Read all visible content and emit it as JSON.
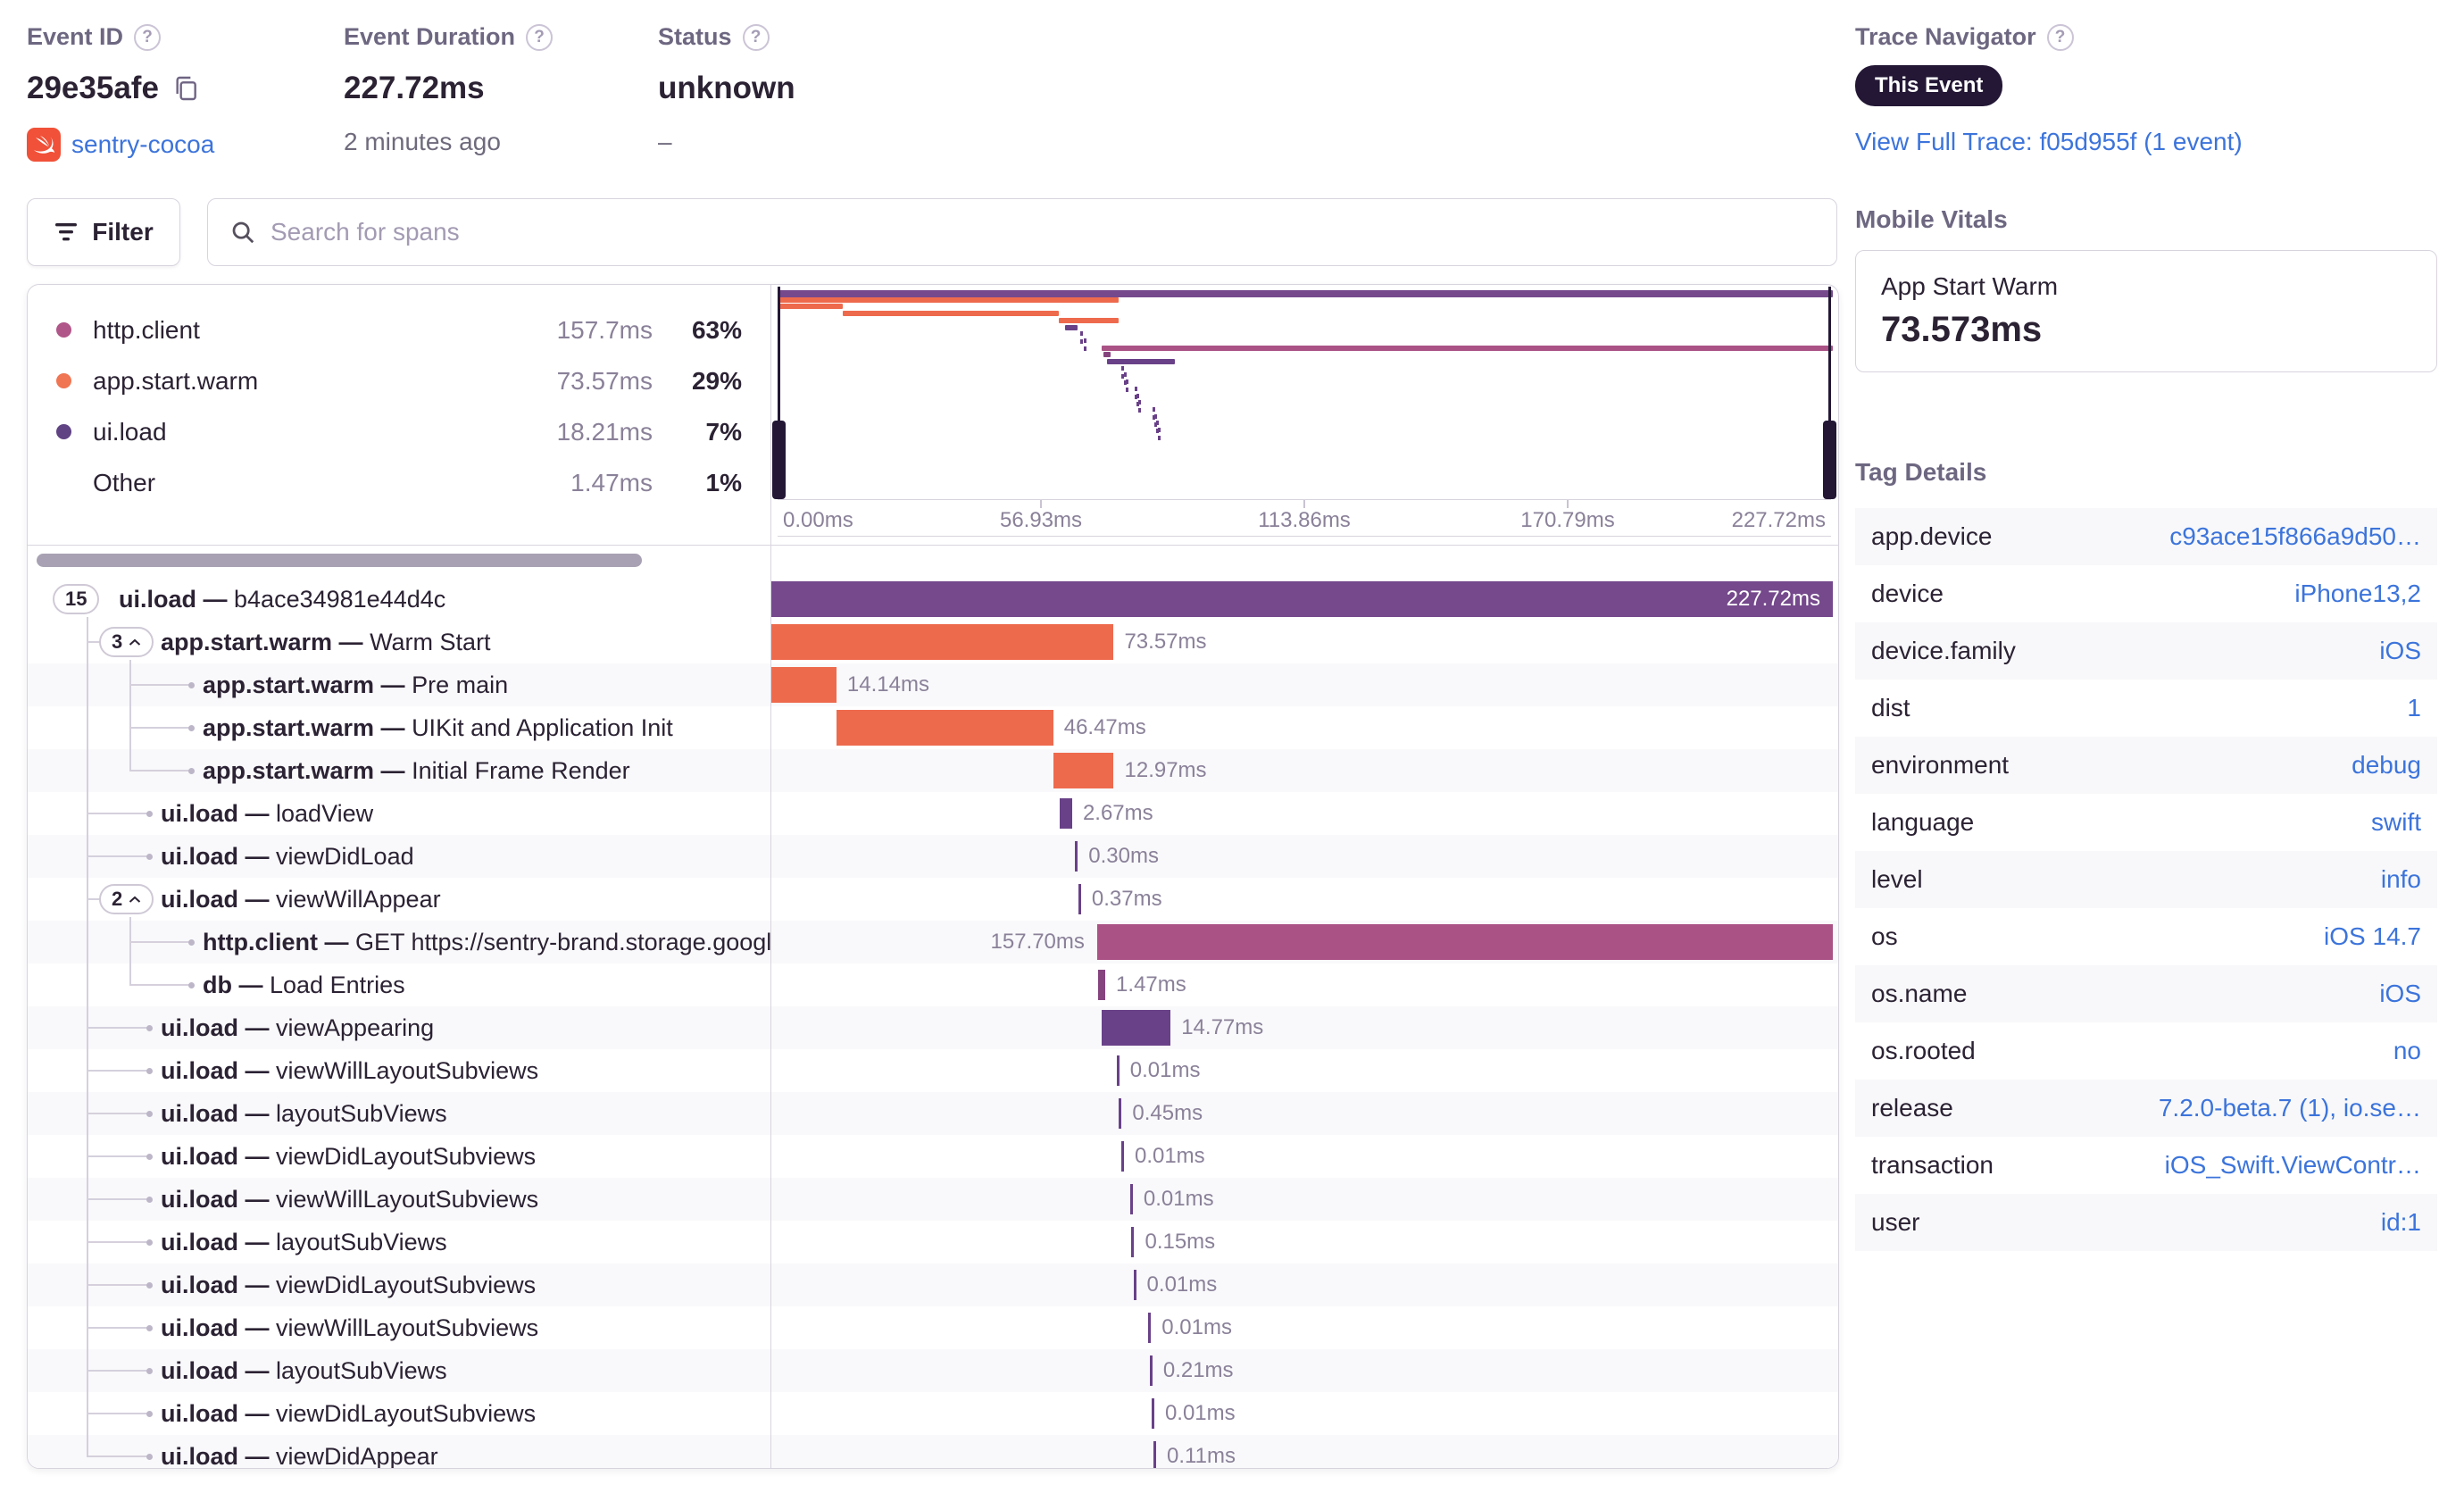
{
  "header": {
    "event_id": {
      "label": "Event ID",
      "value": "29e35afe",
      "project": "sentry-cocoa"
    },
    "duration": {
      "label": "Event Duration",
      "value": "227.72ms",
      "ago": "2 minutes ago"
    },
    "status": {
      "label": "Status",
      "value": "unknown",
      "sub": "–"
    },
    "trace_nav": {
      "label": "Trace Navigator",
      "badge": "This Event",
      "link": "View Full Trace: f05d955f (1 event)"
    }
  },
  "icons": {
    "help_glyph": "?"
  },
  "toolbar": {
    "filter_label": "Filter",
    "search_placeholder": "Search for spans"
  },
  "legend": {
    "items": [
      {
        "op": "http.client",
        "duration": "157.7ms",
        "pct": "63%",
        "color": "#B05688"
      },
      {
        "op": "app.start.warm",
        "duration": "73.57ms",
        "pct": "29%",
        "color": "#EF7553"
      },
      {
        "op": "ui.load",
        "duration": "18.21ms",
        "pct": "7%",
        "color": "#5F4383"
      },
      {
        "op": "Other",
        "duration": "1.47ms",
        "pct": "1%",
        "color": null
      }
    ]
  },
  "minimap": {
    "axis_ticks": [
      "0.00ms",
      "56.93ms",
      "113.86ms",
      "170.79ms",
      "227.72ms"
    ]
  },
  "waterfall": {
    "total_ms": 227.72,
    "separator": "—",
    "rows": [
      {
        "op": "ui.load",
        "desc": "b4ace34981e44d4c",
        "badge": "15",
        "chevron": false,
        "depth": 0,
        "start_ms": 0,
        "duration_ms": 227.72,
        "duration_label": "227.72ms",
        "color": "#75498C",
        "label_pos": "inside"
      },
      {
        "op": "app.start.warm",
        "desc": "Warm Start",
        "badge": "3",
        "chevron": true,
        "depth": 1,
        "start_ms": 0,
        "duration_ms": 73.57,
        "duration_label": "73.57ms",
        "color": "#EE6A4D",
        "label_pos": "right"
      },
      {
        "op": "app.start.warm",
        "desc": "Pre main",
        "depth": 2,
        "start_ms": 0,
        "duration_ms": 14.14,
        "duration_label": "14.14ms",
        "color": "#EE6A4D",
        "label_pos": "right"
      },
      {
        "op": "app.start.warm",
        "desc": "UIKit and Application Init",
        "depth": 2,
        "start_ms": 14.14,
        "duration_ms": 46.47,
        "duration_label": "46.47ms",
        "color": "#EE6A4D",
        "label_pos": "right"
      },
      {
        "op": "app.start.warm",
        "desc": "Initial Frame Render",
        "depth": 2,
        "start_ms": 60.61,
        "duration_ms": 12.97,
        "duration_label": "12.97ms",
        "color": "#EE6A4D",
        "label_pos": "right"
      },
      {
        "op": "ui.load",
        "desc": "loadView",
        "depth": 1,
        "start_ms": 62.0,
        "duration_ms": 2.67,
        "duration_label": "2.67ms",
        "color": "#694188",
        "label_pos": "right"
      },
      {
        "op": "ui.load",
        "desc": "viewDidLoad",
        "depth": 1,
        "start_ms": 65.3,
        "duration_ms": 0.3,
        "duration_label": "0.30ms",
        "color": "#694188",
        "label_pos": "right"
      },
      {
        "op": "ui.load",
        "desc": "viewWillAppear",
        "badge": "2",
        "chevron": true,
        "depth": 1,
        "start_ms": 66.0,
        "duration_ms": 0.37,
        "duration_label": "0.37ms",
        "color": "#694188",
        "label_pos": "right"
      },
      {
        "op": "http.client",
        "desc": "GET https://sentry-brand.storage.googlea",
        "depth": 2,
        "start_ms": 70.02,
        "duration_ms": 157.7,
        "duration_label": "157.70ms",
        "color": "#AA5286",
        "label_pos": "left"
      },
      {
        "op": "db",
        "desc": "Load Entries",
        "depth": 2,
        "start_ms": 70.3,
        "duration_ms": 1.47,
        "duration_label": "1.47ms",
        "color": "#86447F",
        "label_pos": "right"
      },
      {
        "op": "ui.load",
        "desc": "viewAppearing",
        "depth": 1,
        "start_ms": 71.0,
        "duration_ms": 14.77,
        "duration_label": "14.77ms",
        "color": "#694188",
        "label_pos": "right"
      },
      {
        "op": "ui.load",
        "desc": "viewWillLayoutSubviews",
        "depth": 1,
        "start_ms": 74.2,
        "duration_ms": 0.01,
        "duration_label": "0.01ms",
        "color": "#694188",
        "label_pos": "right"
      },
      {
        "op": "ui.load",
        "desc": "layoutSubViews",
        "depth": 1,
        "start_ms": 74.7,
        "duration_ms": 0.45,
        "duration_label": "0.45ms",
        "color": "#694188",
        "label_pos": "right"
      },
      {
        "op": "ui.load",
        "desc": "viewDidLayoutSubviews",
        "depth": 1,
        "start_ms": 75.2,
        "duration_ms": 0.01,
        "duration_label": "0.01ms",
        "color": "#694188",
        "label_pos": "right"
      },
      {
        "op": "ui.load",
        "desc": "viewWillLayoutSubviews",
        "depth": 1,
        "start_ms": 77.1,
        "duration_ms": 0.01,
        "duration_label": "0.01ms",
        "color": "#694188",
        "label_pos": "right"
      },
      {
        "op": "ui.load",
        "desc": "layoutSubViews",
        "depth": 1,
        "start_ms": 77.4,
        "duration_ms": 0.15,
        "duration_label": "0.15ms",
        "color": "#694188",
        "label_pos": "right"
      },
      {
        "op": "ui.load",
        "desc": "viewDidLayoutSubviews",
        "depth": 1,
        "start_ms": 77.8,
        "duration_ms": 0.01,
        "duration_label": "0.01ms",
        "color": "#694188",
        "label_pos": "right"
      },
      {
        "op": "ui.load",
        "desc": "viewWillLayoutSubviews",
        "depth": 1,
        "start_ms": 81.0,
        "duration_ms": 0.01,
        "duration_label": "0.01ms",
        "color": "#694188",
        "label_pos": "right"
      },
      {
        "op": "ui.load",
        "desc": "layoutSubViews",
        "depth": 1,
        "start_ms": 81.3,
        "duration_ms": 0.21,
        "duration_label": "0.21ms",
        "color": "#694188",
        "label_pos": "right"
      },
      {
        "op": "ui.load",
        "desc": "viewDidLayoutSubviews",
        "depth": 1,
        "start_ms": 81.7,
        "duration_ms": 0.01,
        "duration_label": "0.01ms",
        "color": "#694188",
        "label_pos": "right"
      },
      {
        "op": "ui.load",
        "desc": "viewDidAppear",
        "depth": 1,
        "start_ms": 82.1,
        "duration_ms": 0.11,
        "duration_label": "0.11ms",
        "color": "#694188",
        "label_pos": "right"
      }
    ]
  },
  "sidebar": {
    "mobile_vitals": {
      "title": "Mobile Vitals",
      "card": {
        "name": "App Start Warm",
        "value": "73.573ms"
      }
    },
    "tag_details": {
      "title": "Tag Details",
      "rows": [
        {
          "key": "app.device",
          "value": "c93ace15f866a9d50…"
        },
        {
          "key": "device",
          "value": "iPhone13,2"
        },
        {
          "key": "device.family",
          "value": "iOS"
        },
        {
          "key": "dist",
          "value": "1"
        },
        {
          "key": "environment",
          "value": "debug"
        },
        {
          "key": "language",
          "value": "swift"
        },
        {
          "key": "level",
          "value": "info"
        },
        {
          "key": "os",
          "value": "iOS 14.7"
        },
        {
          "key": "os.name",
          "value": "iOS"
        },
        {
          "key": "os.rooted",
          "value": "no"
        },
        {
          "key": "release",
          "value": "7.2.0-beta.7 (1), io.se…"
        },
        {
          "key": "transaction",
          "value": "iOS_Swift.ViewContr…"
        },
        {
          "key": "user",
          "value": "id:1"
        }
      ]
    }
  },
  "colors": {
    "swift_icon": "#F05138",
    "link_blue": "#3C74DB"
  }
}
